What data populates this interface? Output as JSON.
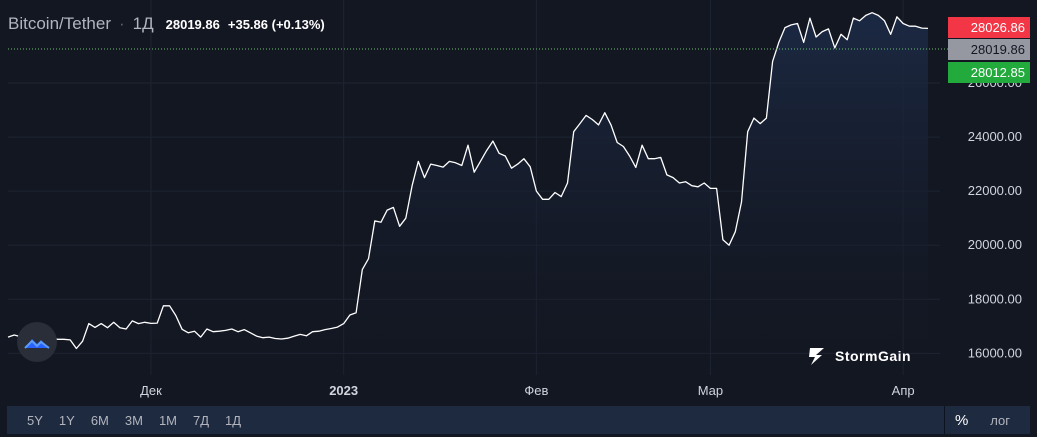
{
  "header": {
    "symbol": "Bitcoin/Tether",
    "separator": "·",
    "interval": "1Д",
    "price": "28019.86",
    "change": "+35.86 (+0.13%)"
  },
  "price_tags": {
    "high": "28026.86",
    "last": "28019.86",
    "low": "28012.85"
  },
  "watermark": {
    "brand": "StormGain"
  },
  "ranges": [
    "5Y",
    "1Y",
    "6M",
    "3M",
    "1M",
    "7Д",
    "1Д"
  ],
  "scale_modes": {
    "percent": "%",
    "log": "лог"
  },
  "colors": {
    "background": "#131722",
    "line": "#ffffff",
    "area_top": "#1c2a45",
    "grid": "#1e2433",
    "tag_high": "#f23645",
    "tag_last": "#9598a1",
    "tag_low": "#22ab3c"
  },
  "icons": {
    "logo": "mountain-logo-icon",
    "brand": "stormgain-bolt-icon"
  },
  "chart_data": {
    "type": "area",
    "y_ticks": [
      16000,
      18000,
      20000,
      22000,
      24000,
      26000
    ],
    "y_tick_labels": [
      "16000.00",
      "18000.00",
      "20000.00",
      "22000.00",
      "24000.00",
      "26000.00"
    ],
    "x_ticks": [
      {
        "day": 23,
        "label": "Дек"
      },
      {
        "day": 54,
        "label": "2023"
      },
      {
        "day": 85,
        "label": "Фев"
      },
      {
        "day": 113,
        "label": "Мар"
      },
      {
        "day": 144,
        "label": "Апр"
      }
    ],
    "ylim": [
      15200,
      28700
    ],
    "grid": true,
    "series": [
      {
        "values": [
          16600,
          16680,
          16620,
          16600,
          16480,
          16300,
          16600,
          16560,
          16520,
          16520,
          16500,
          16180,
          16450,
          17100,
          16960,
          17100,
          16950,
          17150,
          16950,
          16900,
          17200,
          17100,
          17150,
          17110,
          17120,
          17760,
          17760,
          17400,
          16890,
          16760,
          16820,
          16600,
          16900,
          16800,
          16820,
          16850,
          16900,
          16800,
          16880,
          16760,
          16640,
          16580,
          16600,
          16550,
          16530,
          16560,
          16630,
          16700,
          16650,
          16800,
          16820,
          16880,
          16920,
          16970,
          17100,
          17420,
          17500,
          19100,
          19500,
          20900,
          20850,
          21300,
          21400,
          20700,
          21000,
          22200,
          23100,
          22500,
          23000,
          22950,
          22890,
          23100,
          23050,
          22950,
          23700,
          22700,
          23100,
          23500,
          23850,
          23400,
          23300,
          22850,
          23000,
          23200,
          22900,
          22000,
          21700,
          21700,
          21950,
          21800,
          22300,
          24200,
          24500,
          24800,
          24650,
          24450,
          24900,
          24450,
          23800,
          23650,
          23300,
          22880,
          23700,
          23200,
          23200,
          23250,
          22600,
          22500,
          22300,
          22350,
          22200,
          22160,
          22300,
          22100,
          22100,
          20200,
          20000,
          20500,
          21600,
          24200,
          24700,
          24500,
          24700,
          26800,
          27500,
          28050,
          28150,
          28200,
          27500,
          28400,
          27700,
          27900,
          28000,
          27300,
          27800,
          27600,
          28400,
          28300,
          28500,
          28600,
          28500,
          28300,
          27800,
          28450,
          28200,
          28100,
          28100,
          28030,
          28020
        ]
      }
    ]
  }
}
